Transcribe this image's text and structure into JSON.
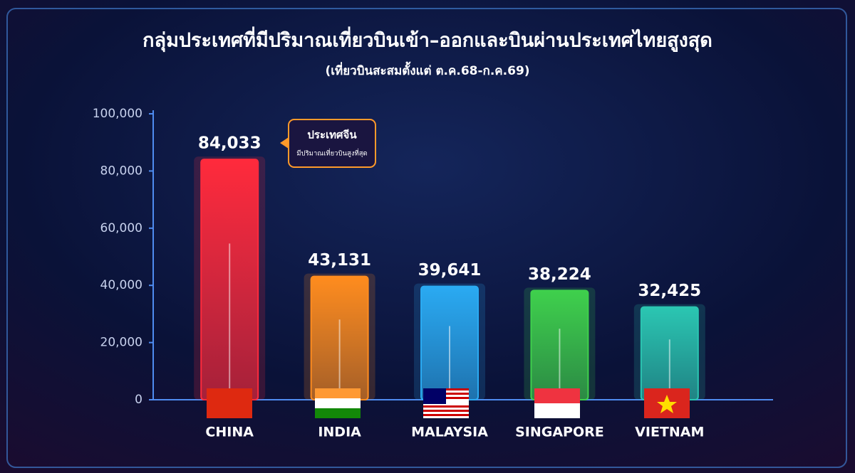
{
  "chart_data": {
    "type": "bar",
    "title": "กลุ่มประเทศที่มีปริมาณเที่ยวบินเข้า–ออกและบินผ่านประเทศไทยสูงสุด",
    "subtitle": "(เที่ยวบินสะสมตั้งแต่ ต.ค.68-ก.ค.69)",
    "categories": [
      "CHINA",
      "INDIA",
      "MALAYSIA",
      "SINGAPORE",
      "VIETNAM"
    ],
    "values": [
      84033,
      43131,
      39641,
      38224,
      32425
    ],
    "value_labels": [
      "84,033",
      "43,131",
      "39,641",
      "38,224",
      "32,425"
    ],
    "colors": [
      "#ff2a3c",
      "#ff8c1e",
      "#2aaaf2",
      "#3fd04c",
      "#2bc6b2"
    ],
    "ylim": [
      0,
      100000
    ],
    "yticks": [
      0,
      {
        "value": 20000,
        "label": "20,000"
      },
      {
        "value": 40000,
        "label": "40,000"
      },
      {
        "value": 60000,
        "label": "60,000"
      },
      {
        "value": 80000,
        "label": "80,000"
      },
      {
        "value": 100000,
        "label": "100,000"
      }
    ],
    "grid": false,
    "annotation": {
      "title": "ประเทศจีน",
      "text": "มีปริมาณเที่ยวบินสูงที่สุด"
    }
  }
}
